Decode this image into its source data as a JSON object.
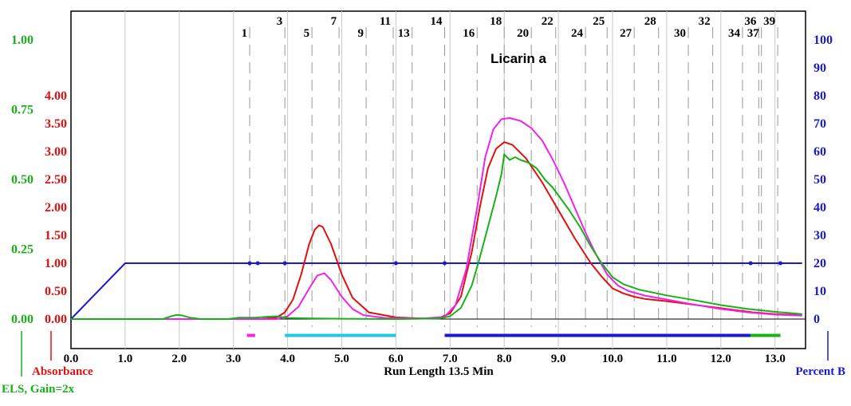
{
  "chart_data": {
    "type": "line",
    "xlabel": "Run Length 13.5 Min",
    "xlim": [
      0,
      13.5
    ],
    "x_ticks": [
      "0.0",
      "1.0",
      "2.0",
      "3.0",
      "4.0",
      "5.0",
      "6.0",
      "7.0",
      "8.0",
      "9.0",
      "10.0",
      "11.0",
      "12.0",
      "13.0"
    ],
    "y_axes": {
      "absorbance": {
        "label": "Absorbance",
        "color": "#e01010",
        "range": [
          0,
          4.0
        ],
        "ticks": [
          "0.00",
          "0.50",
          "1.00",
          "1.50",
          "2.00",
          "2.50",
          "3.00",
          "3.50",
          "4.00"
        ]
      },
      "els": {
        "label": "ELS, Gain=2x",
        "color": "#19b019",
        "range": [
          0,
          1.0
        ],
        "ticks": [
          "0.00",
          "0.25",
          "0.50",
          "0.75",
          "1.00"
        ]
      },
      "percent_b": {
        "label": "Percent B",
        "color": "#1a1acc",
        "range": [
          0,
          100
        ],
        "ticks": [
          "0",
          "10",
          "20",
          "30",
          "40",
          "50",
          "60",
          "70",
          "80",
          "90",
          "100"
        ]
      }
    },
    "annotation": "Licarin a",
    "fractions": [
      {
        "n": "1",
        "x": 3.3
      },
      {
        "n": "3",
        "x": 3.95
      },
      {
        "n": "5",
        "x": 4.45
      },
      {
        "n": "7",
        "x": 4.95
      },
      {
        "n": "9",
        "x": 5.45
      },
      {
        "n": "11",
        "x": 5.95
      },
      {
        "n": "13",
        "x": 6.3
      },
      {
        "n": "14",
        "x": 6.9
      },
      {
        "n": "16",
        "x": 7.5
      },
      {
        "n": "18",
        "x": 8.0
      },
      {
        "n": "20",
        "x": 8.5
      },
      {
        "n": "22",
        "x": 8.95
      },
      {
        "n": "24",
        "x": 9.5
      },
      {
        "n": "25",
        "x": 9.9
      },
      {
        "n": "27",
        "x": 10.4
      },
      {
        "n": "28",
        "x": 10.85
      },
      {
        "n": "30",
        "x": 11.4
      },
      {
        "n": "32",
        "x": 11.85
      },
      {
        "n": "34",
        "x": 12.4
      },
      {
        "n": "36",
        "x": 12.7
      },
      {
        "n": "37",
        "x": 12.75
      },
      {
        "n": "39",
        "x": 13.05
      }
    ],
    "collection_bars": [
      {
        "start": 3.25,
        "end": 3.4,
        "color": "#ff22dd"
      },
      {
        "start": 3.95,
        "end": 6.0,
        "color": "#22c8e0"
      },
      {
        "start": 6.9,
        "end": 12.55,
        "color": "#1a1acc"
      },
      {
        "start": 12.55,
        "end": 13.1,
        "color": "#19b019"
      }
    ],
    "series": [
      {
        "name": "Percent B",
        "axis": "percent_b",
        "color": "#1a1acc",
        "points": [
          [
            0,
            0
          ],
          [
            1.0,
            20
          ],
          [
            13.5,
            20
          ]
        ],
        "markers": [
          3.3,
          3.45,
          3.95,
          6.0,
          6.9,
          12.55,
          13.1
        ]
      },
      {
        "name": "Absorbance",
        "axis": "absorbance",
        "color": "#e01010",
        "points": [
          [
            0,
            0
          ],
          [
            3.5,
            0
          ],
          [
            3.8,
            0.03
          ],
          [
            3.95,
            0.12
          ],
          [
            4.1,
            0.35
          ],
          [
            4.25,
            0.8
          ],
          [
            4.4,
            1.35
          ],
          [
            4.5,
            1.6
          ],
          [
            4.58,
            1.68
          ],
          [
            4.65,
            1.65
          ],
          [
            4.8,
            1.35
          ],
          [
            5.0,
            0.8
          ],
          [
            5.2,
            0.38
          ],
          [
            5.5,
            0.12
          ],
          [
            6.0,
            0.03
          ],
          [
            6.5,
            0.01
          ],
          [
            6.8,
            0.02
          ],
          [
            7.0,
            0.1
          ],
          [
            7.2,
            0.4
          ],
          [
            7.4,
            1.2
          ],
          [
            7.55,
            2.0
          ],
          [
            7.7,
            2.7
          ],
          [
            7.85,
            3.05
          ],
          [
            8.0,
            3.17
          ],
          [
            8.15,
            3.12
          ],
          [
            8.4,
            2.88
          ],
          [
            8.7,
            2.45
          ],
          [
            9.0,
            1.95
          ],
          [
            9.3,
            1.45
          ],
          [
            9.6,
            1.0
          ],
          [
            9.8,
            0.76
          ],
          [
            10.0,
            0.55
          ],
          [
            10.2,
            0.46
          ],
          [
            10.4,
            0.4
          ],
          [
            10.6,
            0.36
          ],
          [
            11.0,
            0.32
          ],
          [
            11.4,
            0.27
          ],
          [
            11.8,
            0.22
          ],
          [
            12.2,
            0.17
          ],
          [
            12.6,
            0.12
          ],
          [
            13.0,
            0.09
          ],
          [
            13.5,
            0.07
          ]
        ]
      },
      {
        "name": "Magenta trace",
        "axis": "absorbance",
        "color": "#ee22ee",
        "points": [
          [
            0,
            0
          ],
          [
            3.8,
            0
          ],
          [
            4.0,
            0.05
          ],
          [
            4.2,
            0.22
          ],
          [
            4.4,
            0.55
          ],
          [
            4.55,
            0.78
          ],
          [
            4.68,
            0.82
          ],
          [
            4.8,
            0.7
          ],
          [
            5.0,
            0.4
          ],
          [
            5.2,
            0.18
          ],
          [
            5.4,
            0.07
          ],
          [
            5.8,
            0.02
          ],
          [
            6.5,
            0.01
          ],
          [
            6.9,
            0.04
          ],
          [
            7.1,
            0.25
          ],
          [
            7.3,
            0.9
          ],
          [
            7.5,
            2.0
          ],
          [
            7.65,
            2.9
          ],
          [
            7.8,
            3.4
          ],
          [
            7.95,
            3.58
          ],
          [
            8.1,
            3.6
          ],
          [
            8.3,
            3.55
          ],
          [
            8.5,
            3.42
          ],
          [
            8.7,
            3.2
          ],
          [
            8.9,
            2.85
          ],
          [
            9.1,
            2.45
          ],
          [
            9.3,
            2.0
          ],
          [
            9.5,
            1.55
          ],
          [
            9.7,
            1.15
          ],
          [
            9.9,
            0.8
          ],
          [
            10.1,
            0.6
          ],
          [
            10.3,
            0.5
          ],
          [
            10.6,
            0.42
          ],
          [
            11.0,
            0.35
          ],
          [
            11.5,
            0.26
          ],
          [
            12.0,
            0.18
          ],
          [
            12.5,
            0.12
          ],
          [
            13.0,
            0.08
          ],
          [
            13.5,
            0.06
          ]
        ]
      },
      {
        "name": "ELS",
        "axis": "els",
        "color": "#19b019",
        "points": [
          [
            0,
            0
          ],
          [
            1.7,
            0
          ],
          [
            1.85,
            0.01
          ],
          [
            1.95,
            0.015
          ],
          [
            2.05,
            0.013
          ],
          [
            2.2,
            0.005
          ],
          [
            2.4,
            0
          ],
          [
            2.9,
            0
          ],
          [
            3.1,
            0.005
          ],
          [
            3.4,
            0.005
          ],
          [
            3.6,
            0.008
          ],
          [
            3.8,
            0.01
          ],
          [
            4.0,
            0.004
          ],
          [
            4.5,
            0.002
          ],
          [
            5.0,
            0.001
          ],
          [
            6.0,
            0
          ],
          [
            6.8,
            0.002
          ],
          [
            7.0,
            0.01
          ],
          [
            7.2,
            0.04
          ],
          [
            7.4,
            0.12
          ],
          [
            7.55,
            0.22
          ],
          [
            7.7,
            0.33
          ],
          [
            7.85,
            0.44
          ],
          [
            7.95,
            0.52
          ],
          [
            8.0,
            0.59
          ],
          [
            8.1,
            0.57
          ],
          [
            8.2,
            0.58
          ],
          [
            8.3,
            0.57
          ],
          [
            8.45,
            0.56
          ],
          [
            8.6,
            0.54
          ],
          [
            8.75,
            0.5
          ],
          [
            8.9,
            0.47
          ],
          [
            9.05,
            0.43
          ],
          [
            9.2,
            0.39
          ],
          [
            9.4,
            0.33
          ],
          [
            9.6,
            0.26
          ],
          [
            9.8,
            0.2
          ],
          [
            10.0,
            0.15
          ],
          [
            10.2,
            0.125
          ],
          [
            10.5,
            0.105
          ],
          [
            11.0,
            0.085
          ],
          [
            11.5,
            0.068
          ],
          [
            12.0,
            0.05
          ],
          [
            12.5,
            0.036
          ],
          [
            13.0,
            0.026
          ],
          [
            13.5,
            0.018
          ]
        ]
      }
    ]
  }
}
